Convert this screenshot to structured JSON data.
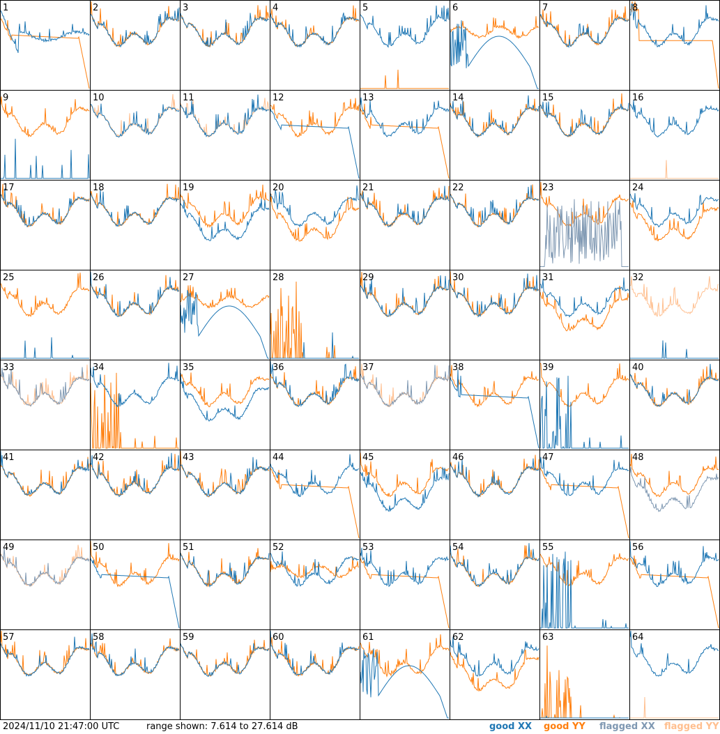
{
  "chart_data": {
    "type": "line",
    "layout": "8x8 small multiples",
    "timestamp": "2024/11/10 21:47:00 UTC",
    "range_text": "range shown: 7.614 to 27.614 dB",
    "ylim": [
      7.614,
      27.614
    ],
    "legend": [
      {
        "key": "good_xx",
        "label": "good XX",
        "color": "#1f77b4"
      },
      {
        "key": "good_yy",
        "label": "good YY",
        "color": "#ff7f0e"
      },
      {
        "key": "flagged_xx",
        "label": "flagged XX",
        "color": "#7f98b2"
      },
      {
        "key": "flagged_yy",
        "label": "flagged YY",
        "color": "#ffbf8f"
      }
    ],
    "panels": [
      {
        "label": "1",
        "xx": "dip",
        "yy": "rolloff"
      },
      {
        "label": "2",
        "xx": "normal",
        "yy": "normal"
      },
      {
        "label": "3",
        "xx": "normal",
        "yy": "normal"
      },
      {
        "label": "4",
        "xx": "normal",
        "yy": "normal"
      },
      {
        "label": "5",
        "xx": "normal",
        "yy": "zero"
      },
      {
        "label": "6",
        "xx": "hump",
        "yy": "flat_high"
      },
      {
        "label": "7",
        "xx": "normal",
        "yy": "normal"
      },
      {
        "label": "8",
        "xx": "normal",
        "yy": "rolloff_late"
      },
      {
        "label": "9",
        "xx": "flag_spikes",
        "yy": "normal"
      },
      {
        "label": "10",
        "xx": "normal",
        "yy": "flagged_normal"
      },
      {
        "label": "11",
        "xx": "normal",
        "yy": "flagged_normal"
      },
      {
        "label": "12",
        "xx": "rolloff",
        "yy": "normal"
      },
      {
        "label": "13",
        "xx": "normal",
        "yy": "rolloff"
      },
      {
        "label": "14",
        "xx": "normal",
        "yy": "normal"
      },
      {
        "label": "15",
        "xx": "normal",
        "yy": "normal"
      },
      {
        "label": "16",
        "xx": "normal",
        "yy": "flagged_zero"
      },
      {
        "label": "17",
        "xx": "normal",
        "yy": "normal"
      },
      {
        "label": "18",
        "xx": "normal",
        "yy": "normal"
      },
      {
        "label": "19",
        "xx": "low",
        "yy": "normal"
      },
      {
        "label": "20",
        "xx": "normal",
        "yy": "low"
      },
      {
        "label": "21",
        "xx": "normal",
        "yy": "normal"
      },
      {
        "label": "22",
        "xx": "normal",
        "yy": "normal"
      },
      {
        "label": "23",
        "xx": "flagged_noise",
        "yy": "normal"
      },
      {
        "label": "24",
        "xx": "normal",
        "yy": "low"
      },
      {
        "label": "25",
        "xx": "zero",
        "yy": "normal"
      },
      {
        "label": "26",
        "xx": "normal",
        "yy": "normal"
      },
      {
        "label": "27",
        "xx": "hump",
        "yy": "flat_high"
      },
      {
        "label": "28",
        "xx": "zero",
        "yy": "spikes"
      },
      {
        "label": "29",
        "xx": "normal",
        "yy": "normal"
      },
      {
        "label": "30",
        "xx": "normal",
        "yy": "normal"
      },
      {
        "label": "31",
        "xx": "normal",
        "yy": "low"
      },
      {
        "label": "32",
        "xx": "zero",
        "yy": "flagged_normal"
      },
      {
        "label": "33",
        "xx": "flagged_normal",
        "yy": "flagged_normal"
      },
      {
        "label": "34",
        "xx": "normal",
        "yy": "spikes"
      },
      {
        "label": "35",
        "xx": "low",
        "yy": "normal"
      },
      {
        "label": "36",
        "xx": "normal",
        "yy": "normal"
      },
      {
        "label": "37",
        "xx": "flagged_normal",
        "yy": "flagged_normal"
      },
      {
        "label": "38",
        "xx": "rolloff",
        "yy": "normal"
      },
      {
        "label": "39",
        "xx": "spikes",
        "yy": "normal"
      },
      {
        "label": "40",
        "xx": "normal",
        "yy": "normal"
      },
      {
        "label": "41",
        "xx": "normal",
        "yy": "normal"
      },
      {
        "label": "42",
        "xx": "normal",
        "yy": "normal"
      },
      {
        "label": "43",
        "xx": "normal",
        "yy": "normal"
      },
      {
        "label": "44",
        "xx": "normal",
        "yy": "rolloff"
      },
      {
        "label": "45",
        "xx": "low",
        "yy": "normal"
      },
      {
        "label": "46",
        "xx": "normal",
        "yy": "normal"
      },
      {
        "label": "47",
        "xx": "normal",
        "yy": "rolloff"
      },
      {
        "label": "48",
        "xx": "flagged_low",
        "yy": "normal"
      },
      {
        "label": "49",
        "xx": "flagged_normal",
        "yy": "flagged_normal"
      },
      {
        "label": "50",
        "xx": "rolloff",
        "yy": "normal"
      },
      {
        "label": "51",
        "xx": "normal",
        "yy": "normal"
      },
      {
        "label": "52",
        "xx": "normal",
        "yy": "flat_high"
      },
      {
        "label": "53",
        "xx": "normal",
        "yy": "rolloff"
      },
      {
        "label": "54",
        "xx": "normal",
        "yy": "normal"
      },
      {
        "label": "55",
        "xx": "spikes",
        "yy": "normal"
      },
      {
        "label": "56",
        "xx": "normal",
        "yy": "rolloff"
      },
      {
        "label": "57",
        "xx": "normal",
        "yy": "normal"
      },
      {
        "label": "58",
        "xx": "normal",
        "yy": "normal"
      },
      {
        "label": "59",
        "xx": "normal",
        "yy": "normal"
      },
      {
        "label": "60",
        "xx": "normal",
        "yy": "normal"
      },
      {
        "label": "61",
        "xx": "hump",
        "yy": "normal"
      },
      {
        "label": "62",
        "xx": "normal",
        "yy": "low"
      },
      {
        "label": "63",
        "xx": "zero",
        "yy": "spikes"
      },
      {
        "label": "64",
        "xx": "normal",
        "yy": "flagged_zero"
      }
    ]
  }
}
